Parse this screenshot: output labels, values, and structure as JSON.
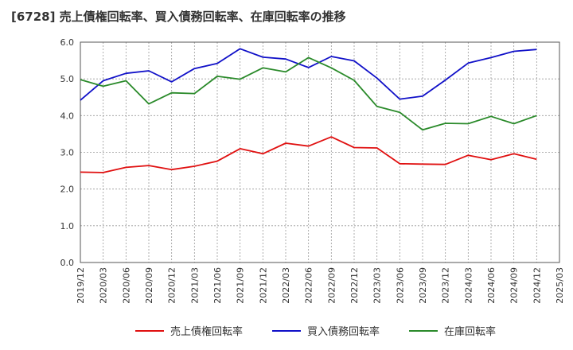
{
  "chart_data": {
    "type": "line",
    "title": "[6728]  売上債権回転率、買入債務回転率、在庫回転率の推移",
    "xlabel": "",
    "ylabel": "",
    "ylim": [
      0,
      6
    ],
    "y_ticks": [
      "0.0",
      "1.0",
      "2.0",
      "3.0",
      "4.0",
      "5.0",
      "6.0"
    ],
    "grid": true,
    "legend_position": "bottom",
    "x_ticks": [
      "2019/12",
      "2020/03",
      "2020/06",
      "2020/09",
      "2020/12",
      "2021/03",
      "2021/06",
      "2021/09",
      "2021/12",
      "2022/03",
      "2022/06",
      "2022/09",
      "2022/12",
      "2023/03",
      "2023/06",
      "2023/09",
      "2023/12",
      "2024/03",
      "2024/06",
      "2024/09",
      "2024/12",
      "2025/03"
    ],
    "x": [
      "2019/12",
      "2020/03",
      "2020/06",
      "2020/09",
      "2020/12",
      "2021/03",
      "2021/06",
      "2021/09",
      "2021/12",
      "2022/03",
      "2022/06",
      "2022/09",
      "2022/12",
      "2023/03",
      "2023/06",
      "2023/09",
      "2023/12",
      "2024/03",
      "2024/06",
      "2024/09",
      "2024/12"
    ],
    "series": [
      {
        "name": "売上債権回転率",
        "color": "#e01010",
        "values": [
          2.46,
          2.45,
          2.59,
          2.64,
          2.53,
          2.62,
          2.76,
          3.1,
          2.96,
          3.25,
          3.17,
          3.42,
          3.13,
          3.12,
          2.69,
          2.68,
          2.67,
          2.92,
          2.8,
          2.96,
          2.81
        ]
      },
      {
        "name": "買入債務回転率",
        "color": "#1010c8",
        "values": [
          4.42,
          4.95,
          5.15,
          5.22,
          4.92,
          5.28,
          5.42,
          5.82,
          5.59,
          5.54,
          5.31,
          5.61,
          5.49,
          5.02,
          4.45,
          4.53,
          4.97,
          5.43,
          5.58,
          5.75,
          5.8
        ]
      },
      {
        "name": "在庫回転率",
        "color": "#2a8a2a",
        "values": [
          4.98,
          4.8,
          4.95,
          4.32,
          4.62,
          4.6,
          5.07,
          4.99,
          5.3,
          5.19,
          5.58,
          5.3,
          4.96,
          4.25,
          4.09,
          3.61,
          3.79,
          3.78,
          3.98,
          3.78,
          4.0
        ]
      }
    ]
  }
}
